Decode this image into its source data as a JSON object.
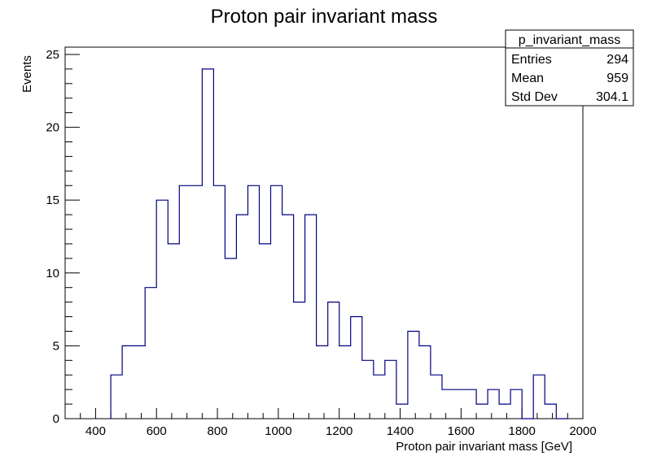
{
  "chart_data": {
    "type": "histogram",
    "title": "Proton pair invariant mass",
    "xlabel": "Proton pair invariant mass [GeV]",
    "ylabel": "Events",
    "xlim": [
      300,
      2000
    ],
    "ylim": [
      0,
      25.5
    ],
    "bin_width": 37.5,
    "x_ticks": [
      400,
      600,
      800,
      1000,
      1200,
      1400,
      1600,
      1800,
      2000
    ],
    "y_ticks": [
      0,
      5,
      10,
      15,
      20,
      25
    ],
    "bins": [
      {
        "x_low": 450.0,
        "x_high": 487.5,
        "count": 3
      },
      {
        "x_low": 487.5,
        "x_high": 525.0,
        "count": 5
      },
      {
        "x_low": 525.0,
        "x_high": 562.5,
        "count": 5
      },
      {
        "x_low": 562.5,
        "x_high": 600.0,
        "count": 9
      },
      {
        "x_low": 600.0,
        "x_high": 637.5,
        "count": 15
      },
      {
        "x_low": 637.5,
        "x_high": 675.0,
        "count": 12
      },
      {
        "x_low": 675.0,
        "x_high": 712.5,
        "count": 16
      },
      {
        "x_low": 712.5,
        "x_high": 750.0,
        "count": 16
      },
      {
        "x_low": 750.0,
        "x_high": 787.5,
        "count": 24
      },
      {
        "x_low": 787.5,
        "x_high": 825.0,
        "count": 16
      },
      {
        "x_low": 825.0,
        "x_high": 862.5,
        "count": 11
      },
      {
        "x_low": 862.5,
        "x_high": 900.0,
        "count": 14
      },
      {
        "x_low": 900.0,
        "x_high": 937.5,
        "count": 16
      },
      {
        "x_low": 937.5,
        "x_high": 975.0,
        "count": 12
      },
      {
        "x_low": 975.0,
        "x_high": 1012.5,
        "count": 16
      },
      {
        "x_low": 1012.5,
        "x_high": 1050.0,
        "count": 14
      },
      {
        "x_low": 1050.0,
        "x_high": 1087.5,
        "count": 8
      },
      {
        "x_low": 1087.5,
        "x_high": 1125.0,
        "count": 14
      },
      {
        "x_low": 1125.0,
        "x_high": 1162.5,
        "count": 5
      },
      {
        "x_low": 1162.5,
        "x_high": 1200.0,
        "count": 8
      },
      {
        "x_low": 1200.0,
        "x_high": 1237.5,
        "count": 5
      },
      {
        "x_low": 1237.5,
        "x_high": 1275.0,
        "count": 7
      },
      {
        "x_low": 1275.0,
        "x_high": 1312.5,
        "count": 4
      },
      {
        "x_low": 1312.5,
        "x_high": 1350.0,
        "count": 3
      },
      {
        "x_low": 1350.0,
        "x_high": 1387.5,
        "count": 4
      },
      {
        "x_low": 1387.5,
        "x_high": 1425.0,
        "count": 1
      },
      {
        "x_low": 1425.0,
        "x_high": 1462.5,
        "count": 6
      },
      {
        "x_low": 1462.5,
        "x_high": 1500.0,
        "count": 5
      },
      {
        "x_low": 1500.0,
        "x_high": 1537.5,
        "count": 3
      },
      {
        "x_low": 1537.5,
        "x_high": 1575.0,
        "count": 2
      },
      {
        "x_low": 1575.0,
        "x_high": 1612.5,
        "count": 2
      },
      {
        "x_low": 1612.5,
        "x_high": 1650.0,
        "count": 2
      },
      {
        "x_low": 1650.0,
        "x_high": 1687.5,
        "count": 1
      },
      {
        "x_low": 1687.5,
        "x_high": 1725.0,
        "count": 2
      },
      {
        "x_low": 1725.0,
        "x_high": 1762.5,
        "count": 1
      },
      {
        "x_low": 1762.5,
        "x_high": 1800.0,
        "count": 2
      },
      {
        "x_low": 1800.0,
        "x_high": 1837.5,
        "count": 0
      },
      {
        "x_low": 1837.5,
        "x_high": 1875.0,
        "count": 3
      },
      {
        "x_low": 1875.0,
        "x_high": 1912.5,
        "count": 1
      },
      {
        "x_low": 1912.5,
        "x_high": 1950.0,
        "count": 0
      }
    ],
    "line_color": "#000080",
    "grid": false,
    "legend": "none",
    "stats_box": {
      "name": "p_invariant_mass",
      "placement": "top-right",
      "rows": [
        {
          "label": "Entries",
          "value": "294"
        },
        {
          "label": "Mean",
          "value": "959"
        },
        {
          "label": "Std Dev",
          "value": "304.1"
        }
      ]
    }
  }
}
